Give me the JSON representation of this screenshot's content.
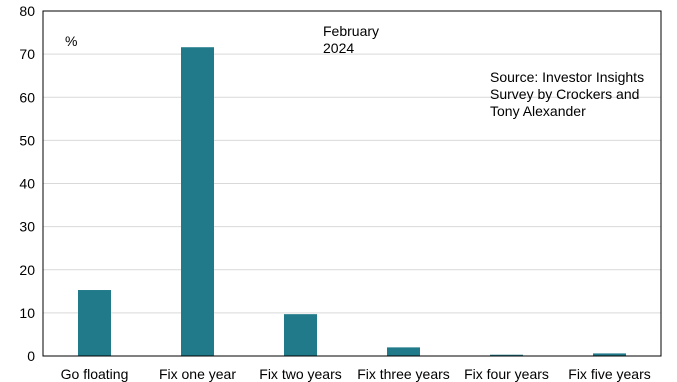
{
  "chart_data": {
    "type": "bar",
    "categories": [
      "Go floating",
      "Fix one year",
      "Fix two years",
      "Fix three years",
      "Fix four years",
      "Fix five years"
    ],
    "values": [
      15.3,
      71.6,
      9.7,
      2.0,
      0.3,
      0.6
    ],
    "unit_label": "%",
    "period_label": [
      "February",
      "2024"
    ],
    "source_note": [
      "Source: Investor Insights",
      "Survey by Crockers and",
      "Tony Alexander"
    ],
    "ylim": [
      0,
      80
    ],
    "yticks": [
      0,
      10,
      20,
      30,
      40,
      50,
      60,
      70,
      80
    ],
    "grid": "horizontal",
    "legend": "none",
    "colors": {
      "bar": "#217A8A",
      "grid": "#D9D9D9",
      "frame": "#000000"
    }
  }
}
